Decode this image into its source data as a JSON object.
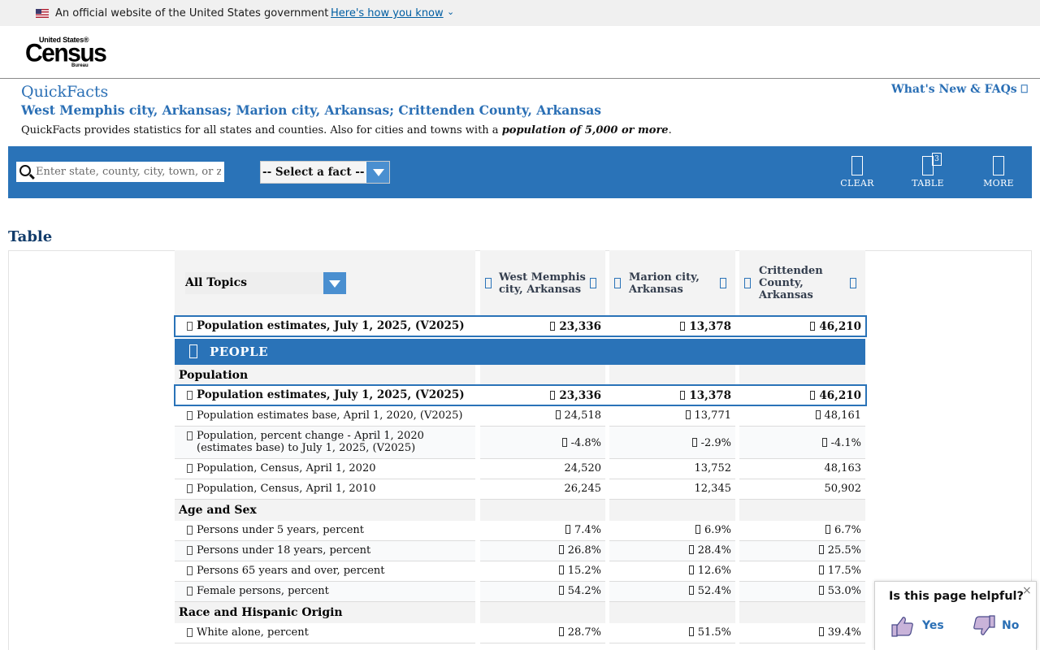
{
  "gov_banner": {
    "official_text": "An official website of the United States government",
    "how_you_know": "Here's how you know"
  },
  "logo": {
    "line1": "United States®",
    "line2": "Census",
    "line3": "Bureau"
  },
  "header": {
    "title": "QuickFacts",
    "places": "West Memphis city, Arkansas; Marion city, Arkansas; Crittenden County, Arkansas",
    "description_prefix": "QuickFacts provides statistics for all states and counties. Also for cities and towns with a ",
    "description_bold": "population of 5,000 or more",
    "description_suffix": ".",
    "whats_new": "What's New & FAQs ⎕"
  },
  "toolbar": {
    "search_placeholder": "Enter state, county, city, town, or zip code",
    "fact_select": "-- Select a fact --",
    "clear_label": "CLEAR",
    "table_label": "TABLE",
    "table_badge": "3",
    "more_label": "MORE"
  },
  "table": {
    "heading": "Table",
    "topics_select": "All Topics",
    "columns": [
      "West Memphis city, Arkansas",
      "Marion city, Arkansas",
      "Crittenden County, Arkansas"
    ],
    "top_row": {
      "fact": "Population estimates, July 1, 2025, (V2025)",
      "values": [
        "23,336",
        "13,378",
        "46,210"
      ]
    },
    "people_label": "PEOPLE",
    "sections": {
      "population": "Population",
      "age_sex": "Age and Sex",
      "race": "Race and Hispanic Origin"
    },
    "rows": [
      {
        "fact": "Population estimates, July 1, 2025, (V2025)",
        "values": [
          "23,336",
          "13,378",
          "46,210"
        ]
      },
      {
        "fact": "Population estimates base, April 1, 2020, (V2025)",
        "values": [
          "24,518",
          "13,771",
          "48,161"
        ]
      },
      {
        "fact": "Population, percent change - April 1, 2020 (estimates base) to July 1, 2025, (V2025)",
        "values": [
          "-4.8%",
          "-2.9%",
          "-4.1%"
        ]
      },
      {
        "fact": "Population, Census, April 1, 2020",
        "values": [
          "24,520",
          "13,752",
          "48,163"
        ]
      },
      {
        "fact": "Population, Census, April 1, 2010",
        "values": [
          "26,245",
          "12,345",
          "50,902"
        ]
      },
      {
        "fact": "Persons under 5 years, percent",
        "values": [
          "7.4%",
          "6.9%",
          "6.7%"
        ]
      },
      {
        "fact": "Persons under 18 years, percent",
        "values": [
          "26.8%",
          "28.4%",
          "25.5%"
        ]
      },
      {
        "fact": "Persons 65 years and over, percent",
        "values": [
          "15.2%",
          "12.6%",
          "17.5%"
        ]
      },
      {
        "fact": "Female persons, percent",
        "values": [
          "54.2%",
          "52.4%",
          "53.0%"
        ]
      },
      {
        "fact": "White alone, percent",
        "values": [
          "28.7%",
          "51.5%",
          "39.4%"
        ]
      }
    ]
  },
  "feedback": {
    "question": "Is this page helpful?",
    "yes": "Yes",
    "no": "No",
    "close": "×"
  }
}
